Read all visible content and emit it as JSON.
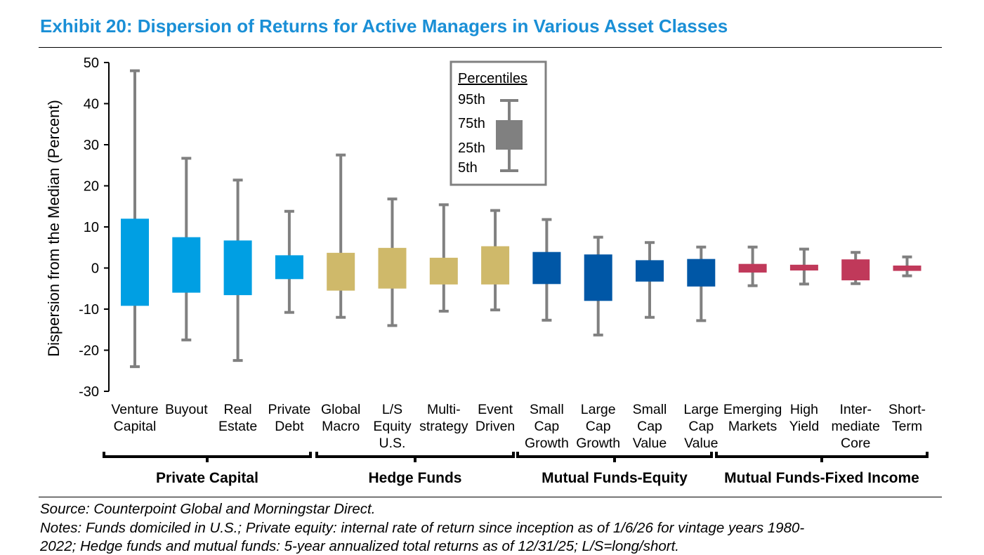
{
  "title": "Exhibit 20: Dispersion of Returns for Active Managers in Various Asset Classes",
  "source": "Source: Counterpoint Global and Morningstar Direct.",
  "notes_line1": "Notes: Funds domiciled in U.S.; Private equity: internal rate of return since inception as of 1/6/26 for vintage years 1980-",
  "notes_line2": "2022; Hedge funds and mutual funds: 5-year annualized total returns as of 12/31/25; L/S=long/short.",
  "colors": {
    "private_capital": "#009fe3",
    "hedge_funds": "#cfb96a",
    "equity": "#0057a6",
    "fixed_income": "#c0395a",
    "whisker": "#808080",
    "title": "#1a8fd6"
  },
  "legend": {
    "title": "Percentiles",
    "labels": [
      "95th",
      "75th",
      "25th",
      "5th"
    ]
  },
  "chart_data": {
    "type": "boxplot",
    "ylabel": "Dispersion from the Median (Percent)",
    "ylim": [
      -30,
      50
    ],
    "yticks": [
      50,
      40,
      30,
      20,
      10,
      0,
      -10,
      -20,
      -30
    ],
    "series_fields": [
      "p5",
      "p25",
      "p75",
      "p95"
    ],
    "categories": [
      {
        "label": [
          "Venture",
          "Capital"
        ],
        "group": "private_capital",
        "p5": -24,
        "p25": -9.2,
        "p75": 12,
        "p95": 48
      },
      {
        "label": [
          "Buyout"
        ],
        "group": "private_capital",
        "p5": -17.5,
        "p25": -6,
        "p75": 7.5,
        "p95": 26.7
      },
      {
        "label": [
          "Real",
          "Estate"
        ],
        "group": "private_capital",
        "p5": -22.5,
        "p25": -6.6,
        "p75": 6.7,
        "p95": 21.4
      },
      {
        "label": [
          "Private",
          "Debt"
        ],
        "group": "private_capital",
        "p5": -10.8,
        "p25": -2.7,
        "p75": 3.1,
        "p95": 13.8
      },
      {
        "label": [
          "Global",
          "Macro"
        ],
        "group": "hedge_funds",
        "p5": -12,
        "p25": -5.5,
        "p75": 3.7,
        "p95": 27.5
      },
      {
        "label": [
          "L/S",
          "Equity",
          "U.S."
        ],
        "group": "hedge_funds",
        "p5": -14,
        "p25": -5,
        "p75": 4.9,
        "p95": 16.8
      },
      {
        "label": [
          "Multi-",
          "strategy"
        ],
        "group": "hedge_funds",
        "p5": -10.5,
        "p25": -4,
        "p75": 2.5,
        "p95": 15.4
      },
      {
        "label": [
          "Event",
          "Driven"
        ],
        "group": "hedge_funds",
        "p5": -10.2,
        "p25": -4,
        "p75": 5.3,
        "p95": 14
      },
      {
        "label": [
          "Small",
          "Cap",
          "Growth"
        ],
        "group": "equity",
        "p5": -12.7,
        "p25": -3.9,
        "p75": 3.9,
        "p95": 11.8
      },
      {
        "label": [
          "Large",
          "Cap",
          "Growth"
        ],
        "group": "equity",
        "p5": -16.3,
        "p25": -8,
        "p75": 3.3,
        "p95": 7.5
      },
      {
        "label": [
          "Small",
          "Cap",
          "Value"
        ],
        "group": "equity",
        "p5": -12,
        "p25": -3.3,
        "p75": 1.9,
        "p95": 6.2
      },
      {
        "label": [
          "Large",
          "Cap",
          "Value"
        ],
        "group": "equity",
        "p5": -12.8,
        "p25": -4.5,
        "p75": 2.2,
        "p95": 5.1
      },
      {
        "label": [
          "Emerging",
          "Markets"
        ],
        "group": "fixed_income",
        "p5": -4.3,
        "p25": -1.1,
        "p75": 1,
        "p95": 5.1
      },
      {
        "label": [
          "High",
          "Yield"
        ],
        "group": "fixed_income",
        "p5": -3.9,
        "p25": -0.6,
        "p75": 0.8,
        "p95": 4.6
      },
      {
        "label": [
          "Inter-",
          "mediate",
          "Core"
        ],
        "group": "fixed_income",
        "p5": -3.8,
        "p25": -3,
        "p75": 2.1,
        "p95": 3.8
      },
      {
        "label": [
          "Short-",
          "Term"
        ],
        "group": "fixed_income",
        "p5": -1.9,
        "p25": -0.7,
        "p75": 0.6,
        "p95": 2.7
      }
    ],
    "groups": [
      {
        "key": "private_capital",
        "name": "Private Capital"
      },
      {
        "key": "hedge_funds",
        "name": "Hedge Funds"
      },
      {
        "key": "equity",
        "name": "Mutual Funds-Equity"
      },
      {
        "key": "fixed_income",
        "name": "Mutual Funds-Fixed Income"
      }
    ]
  }
}
